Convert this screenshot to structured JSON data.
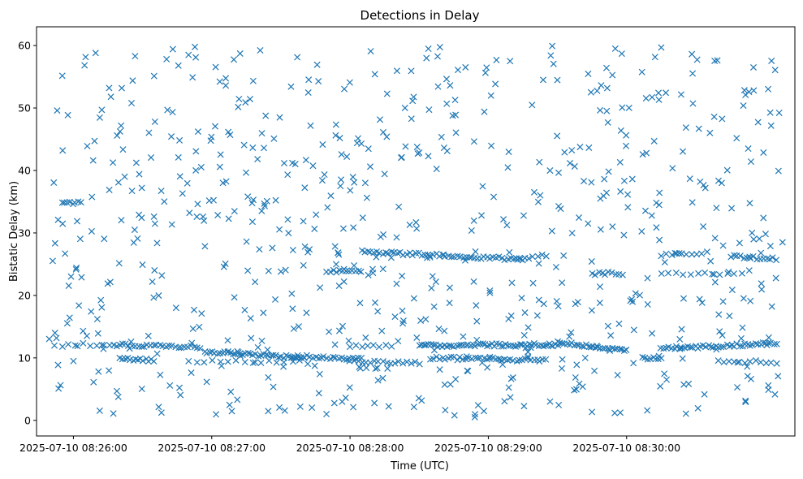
{
  "chart_data": {
    "type": "scatter",
    "title": "Detections in Delay",
    "xlabel": "Time (UTC)",
    "ylabel": "Bistatic Delay (km)",
    "xlim": [
      "2025-07-10 08:25:44",
      "2025-07-10 08:31:13"
    ],
    "ylim": [
      -2.5,
      63
    ],
    "x_tick_labels": [
      "2025-07-10 08:26:00",
      "2025-07-10 08:27:00",
      "2025-07-10 08:28:00",
      "2025-07-10 08:29:00",
      "2025-07-10 08:30:00"
    ],
    "y_tick_labels": [
      "0",
      "10",
      "20",
      "30",
      "40",
      "50",
      "60"
    ],
    "y_ticks": [
      0,
      10,
      20,
      30,
      40,
      50,
      60
    ],
    "marker": "x",
    "grid": false,
    "series_color": "#1f77b4",
    "series": [
      {
        "tracks": [
          {
            "x_start": "2025-07-10 08:25:52",
            "x_end": "2025-07-10 08:26:13",
            "y_start": 12.0,
            "y_end": 12.2,
            "count": 8
          },
          {
            "x_start": "2025-07-10 08:26:16",
            "x_end": "2025-07-10 08:26:55",
            "y_start": 12.1,
            "y_end": 11.7,
            "count": 30
          },
          {
            "x_start": "2025-07-10 08:26:20",
            "x_end": "2025-07-10 08:26:35",
            "y_start": 10.0,
            "y_end": 9.5,
            "count": 14
          },
          {
            "x_start": "2025-07-10 08:26:50",
            "x_end": "2025-07-10 08:27:35",
            "y_start": 9.5,
            "y_end": 9.3,
            "count": 14
          },
          {
            "x_start": "2025-07-10 08:26:57",
            "x_end": "2025-07-10 08:27:40",
            "y_start": 11.0,
            "y_end": 10.0,
            "count": 40
          },
          {
            "x_start": "2025-07-10 08:27:35",
            "x_end": "2025-07-10 08:28:05",
            "y_start": 10.3,
            "y_end": 9.8,
            "count": 25
          },
          {
            "x_start": "2025-07-10 08:27:50",
            "x_end": "2025-07-10 08:28:05",
            "y_start": 23.8,
            "y_end": 24.0,
            "count": 12
          },
          {
            "x_start": "2025-07-10 08:28:00",
            "x_end": "2025-07-10 08:28:18",
            "y_start": 12.0,
            "y_end": 11.8,
            "count": 8
          },
          {
            "x_start": "2025-07-10 08:28:00",
            "x_end": "2025-07-10 08:28:30",
            "y_start": 9.5,
            "y_end": 9.2,
            "count": 18
          },
          {
            "x_start": "2025-07-10 08:28:05",
            "x_end": "2025-07-10 08:29:15",
            "y_start": 27.0,
            "y_end": 25.8,
            "count": 55
          },
          {
            "x_start": "2025-07-10 08:28:30",
            "x_end": "2025-07-10 08:29:30",
            "y_start": 12.0,
            "y_end": 12.1,
            "count": 60
          },
          {
            "x_start": "2025-07-10 08:28:35",
            "x_end": "2025-07-10 08:29:25",
            "y_start": 10.0,
            "y_end": 9.6,
            "count": 40
          },
          {
            "x_start": "2025-07-10 08:29:12",
            "x_end": "2025-07-10 08:29:25",
            "y_start": 26.0,
            "y_end": 26.3,
            "count": 8
          },
          {
            "x_start": "2025-07-10 08:29:30",
            "x_end": "2025-07-10 08:30:00",
            "y_start": 12.5,
            "y_end": 11.3,
            "count": 30
          },
          {
            "x_start": "2025-07-10 08:29:45",
            "x_end": "2025-07-10 08:29:58",
            "y_start": 23.5,
            "y_end": 23.5,
            "count": 10
          },
          {
            "x_start": "2025-07-10 08:30:07",
            "x_end": "2025-07-10 08:30:15",
            "y_start": 10.0,
            "y_end": 10.0,
            "count": 8
          },
          {
            "x_start": "2025-07-10 08:30:15",
            "x_end": "2025-07-10 08:31:05",
            "y_start": 11.5,
            "y_end": 12.3,
            "count": 45
          },
          {
            "x_start": "2025-07-10 08:30:15",
            "x_end": "2025-07-10 08:30:35",
            "y_start": 26.5,
            "y_end": 26.8,
            "count": 10
          },
          {
            "x_start": "2025-07-10 08:30:45",
            "x_end": "2025-07-10 08:31:05",
            "y_start": 26.2,
            "y_end": 25.8,
            "count": 15
          },
          {
            "x_start": "2025-07-10 08:30:15",
            "x_end": "2025-07-10 08:30:50",
            "y_start": 23.5,
            "y_end": 23.5,
            "count": 12
          },
          {
            "x_start": "2025-07-10 08:30:40",
            "x_end": "2025-07-10 08:31:05",
            "y_start": 9.5,
            "y_end": 9.3,
            "count": 12
          },
          {
            "x_start": "2025-07-10 08:25:55",
            "x_end": "2025-07-10 08:26:03",
            "y_start": 34.8,
            "y_end": 34.8,
            "count": 8
          }
        ],
        "clutter": {
          "x_range": [
            "2025-07-10 08:25:47",
            "2025-07-10 08:31:08"
          ],
          "y_range": [
            0.5,
            60
          ],
          "count": 700
        }
      }
    ]
  }
}
